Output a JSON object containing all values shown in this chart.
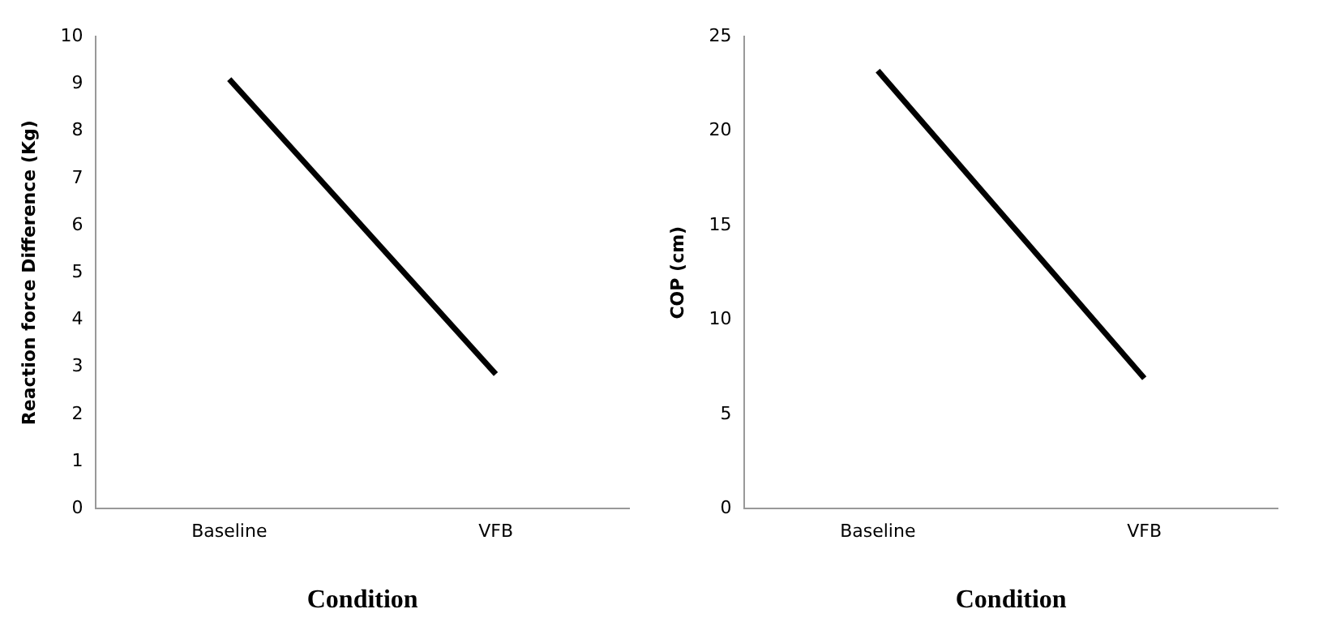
{
  "chart_data": [
    {
      "type": "line",
      "xlabel": "Condition",
      "ylabel": "Reaction force Difference (Kg)",
      "categories": [
        "Baseline",
        "VFB"
      ],
      "series": [
        {
          "color": "#000000",
          "values": [
            9.1,
            2.85
          ]
        }
      ],
      "ylim": [
        0,
        10
      ],
      "yticks": [
        0,
        1,
        2,
        3,
        4,
        5,
        6,
        7,
        8,
        9,
        10
      ],
      "grid": false,
      "legend": false,
      "marker": "none"
    },
    {
      "type": "line",
      "xlabel": "Condition",
      "ylabel": "COP (cm)",
      "categories": [
        "Baseline",
        "VFB"
      ],
      "series": [
        {
          "color": "#000000",
          "values": [
            23.2,
            6.9
          ]
        }
      ],
      "ylim": [
        0,
        25
      ],
      "yticks": [
        0,
        5,
        10,
        15,
        20,
        25
      ],
      "grid": false,
      "legend": false,
      "marker": "none"
    }
  ]
}
